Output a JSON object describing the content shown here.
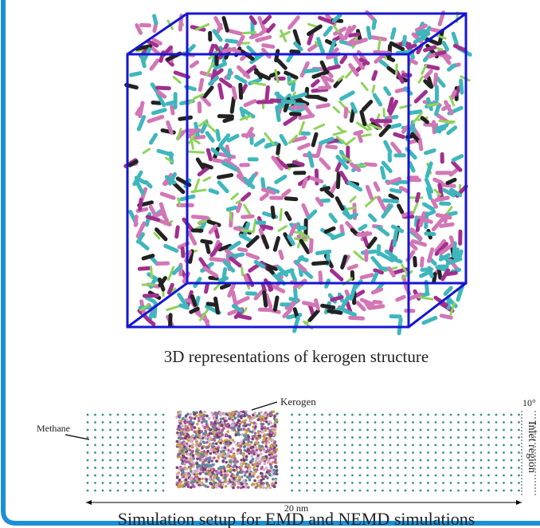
{
  "figure_top": {
    "caption": "3D representations of kerogen structure"
  },
  "figure_bottom": {
    "labels": {
      "kerogen": "Kerogen",
      "methane": "Methane",
      "angle": "10°",
      "inlet": "Inlet region",
      "length": "20 nm"
    },
    "caption": "Simulation setup for EMD and NEMD simulations"
  }
}
